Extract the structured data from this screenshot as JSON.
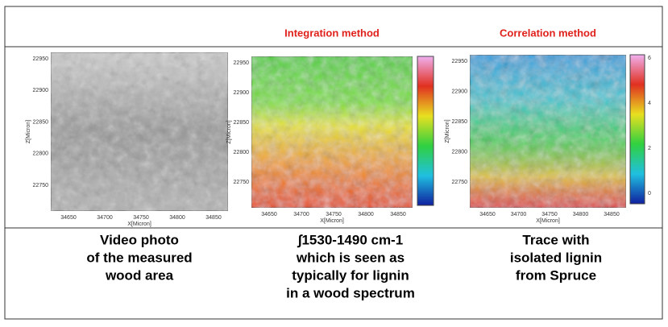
{
  "panels": [
    {
      "title": null,
      "yticks": [
        "22950",
        "22900",
        "22850",
        "22800",
        "22750"
      ],
      "xticks": [
        "34650",
        "34700",
        "34750",
        "34800",
        "34850"
      ],
      "xlabel": "X[Micron]",
      "ylabel": "Z[Micron]",
      "caption": [
        "Video photo",
        "of the measured",
        "wood area"
      ]
    },
    {
      "title": "Integration method",
      "yticks": [
        "22950",
        "22900",
        "22850",
        "22800",
        "22750"
      ],
      "xticks": [
        "34650",
        "34700",
        "34750",
        "34800",
        "34850"
      ],
      "xlabel": "X[Micron]",
      "ylabel": "Z[Micron]",
      "caption": [
        "∫1530-1490 cm-1",
        "which is seen as",
        "typically for lignin",
        "in a wood spectrum"
      ]
    },
    {
      "title": "Correlation method",
      "yticks": [
        "22950",
        "22900",
        "22850",
        "22800",
        "22750"
      ],
      "xticks": [
        "34650",
        "34700",
        "34750",
        "34800",
        "34850"
      ],
      "xlabel": "X[Micron]",
      "ylabel": "Z[Micron]",
      "colorbar": [
        "6",
        "4",
        "2",
        "0"
      ],
      "caption": [
        "Trace with",
        "isolated lignin",
        "from Spruce"
      ]
    }
  ]
}
